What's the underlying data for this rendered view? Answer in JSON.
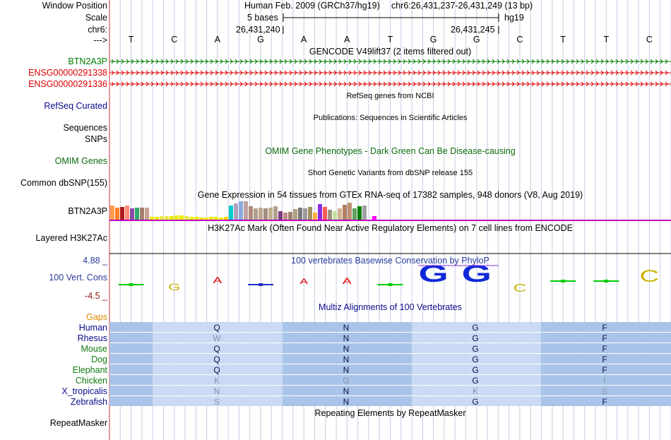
{
  "header": {
    "window_position_label": "Window Position",
    "assembly": "Human Feb. 2009 (GRCh37/hg19)",
    "position": "chr6:26,431,237-26,431,249 (13 bp)",
    "scale_label": "Scale",
    "scale_text": "5 bases",
    "scale_db": "hg19",
    "chrom_label": "chr6:",
    "coord_left": "26,431,240",
    "coord_right": "26,431,245",
    "strand_label": "--->"
  },
  "bases": [
    "T",
    "C",
    "A",
    "G",
    "A",
    "A",
    "T",
    "G",
    "G",
    "C",
    "T",
    "T",
    "C"
  ],
  "gencode": {
    "title": "GENCODE V49lift37 (2 items filtered out)",
    "items": [
      {
        "label": "BTN2A3P",
        "color": "#007a00"
      },
      {
        "label": "ENSG00000291338",
        "color": "#dd0000"
      },
      {
        "label": "ENSG00000291336",
        "color": "#dd0000"
      }
    ]
  },
  "refseq": {
    "title": "RefSeq genes from NCBI",
    "label": "RefSeq Curated"
  },
  "publications": {
    "title": "Publications: Sequences in Scientific Articles",
    "label1": "Sequences",
    "label2": "SNPs"
  },
  "omim": {
    "title": "OMIM Gene Phenotypes - Dark Green Can Be Disease-causing",
    "label": "OMIM Genes"
  },
  "dbsnp": {
    "title": "Short Genetic Variants from dbSNP release 155",
    "label": "Common dbSNP(155)"
  },
  "gtex": {
    "title": "Gene Expression in 54 tissues from GTEx RNA-seq of 17382 samples, 948 donors (V8, Aug 2019)",
    "label": "BTN2A3P"
  },
  "h3k27ac": {
    "title": "H3K27Ac Mark (Often Found Near Active Regulatory Elements) on 7 cell lines from ENCODE",
    "label": "Layered H3K27Ac"
  },
  "phylop": {
    "title": "100 vertebrates Basewise Conservation by PhyloP",
    "label": "100 Vert. Cons",
    "max": "4.88 _",
    "min": "-4.5 _"
  },
  "multiz": {
    "title": "Multiz Alignments of 100 Vertebrates",
    "gaps_label": "Gaps",
    "species": [
      {
        "name": "Human",
        "color": "#0a0a8c",
        "aa": [
          "Q",
          "N",
          "G",
          "F"
        ]
      },
      {
        "name": "Rhesus",
        "color": "#0a0a8c",
        "aa": [
          "W",
          "N",
          "G",
          "F"
        ]
      },
      {
        "name": "Mouse",
        "color": "#127812",
        "aa": [
          "Q",
          "N",
          "G",
          "F"
        ]
      },
      {
        "name": "Dog",
        "color": "#127812",
        "aa": [
          "Q",
          "N",
          "G",
          "F"
        ]
      },
      {
        "name": "Elephant",
        "color": "#127812",
        "aa": [
          "Q",
          "N",
          "G",
          "F"
        ]
      },
      {
        "name": "Chicken",
        "color": "#127812",
        "aa": [
          "K",
          "G",
          "G",
          "I"
        ]
      },
      {
        "name": "X_tropicalis",
        "color": "#0a0a8c",
        "aa": [
          "N",
          "N",
          "K",
          "S"
        ]
      },
      {
        "name": "Zebrafish",
        "color": "#0a0a8c",
        "aa": [
          "S",
          "N",
          "G",
          "F"
        ]
      }
    ]
  },
  "repeatmasker": {
    "title": "Repeating Elements by RepeatMasker",
    "label": "RepeatMasker"
  },
  "colors": {
    "separator": "#c000c0",
    "grid": "#c6cde4",
    "align_dark": "#a9c4e8",
    "align_light": "#cadaf4",
    "border": "#d03030"
  }
}
